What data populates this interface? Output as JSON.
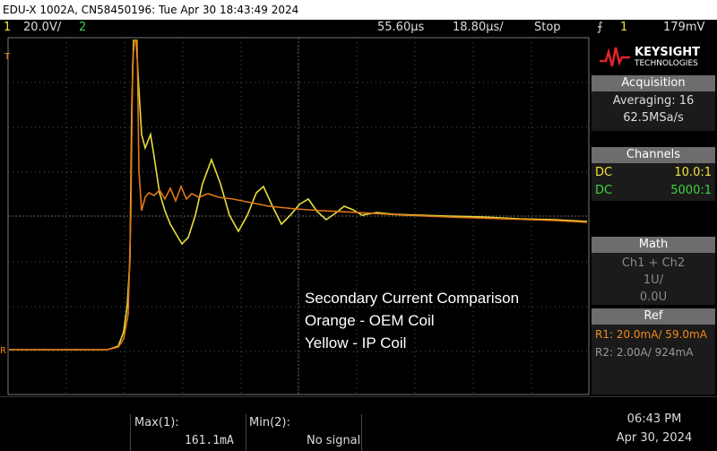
{
  "header": {
    "title": "EDU-X 1002A, CN58450196: Tue Apr 30 18:43:49 2024"
  },
  "toolbar": {
    "ch1": "1",
    "ch1_scale": "20.0V/",
    "ch2": "2",
    "delay": "55.60µs",
    "timebase": "18.80µs/",
    "state": "Stop",
    "trigger_source": "1",
    "trigger_level": "179mV"
  },
  "annotation": [
    "Secondary Current Comparison",
    "Orange - OEM Coil",
    "Yellow - IP Coil"
  ],
  "panel": {
    "brand": "KEYSIGHT",
    "brand_sub": "TECHNOLOGIES",
    "acquisition": {
      "header": "Acquisition",
      "averaging": "Averaging: 16",
      "rate": "62.5MSa/s"
    },
    "channels": {
      "header": "Channels",
      "rows": [
        {
          "coupling": "DC",
          "probe": "10.0:1"
        },
        {
          "coupling": "DC",
          "probe": "5000:1"
        }
      ]
    },
    "math": {
      "header": "Math",
      "function": "Ch1 + Ch2",
      "scale": "1U/",
      "offset": "0.0U"
    },
    "ref": {
      "header": "Ref",
      "rows": [
        "R1: 20.0mA/ 59.0mA",
        "R2: 2.00A/ 924mA"
      ]
    }
  },
  "footer": {
    "measurements": [
      {
        "label": "Max(1):",
        "value": "161.1mA"
      },
      {
        "label": "Min(2):",
        "value": "No signal"
      }
    ],
    "time": "06:43 PM",
    "date": "Apr 30, 2024"
  }
}
